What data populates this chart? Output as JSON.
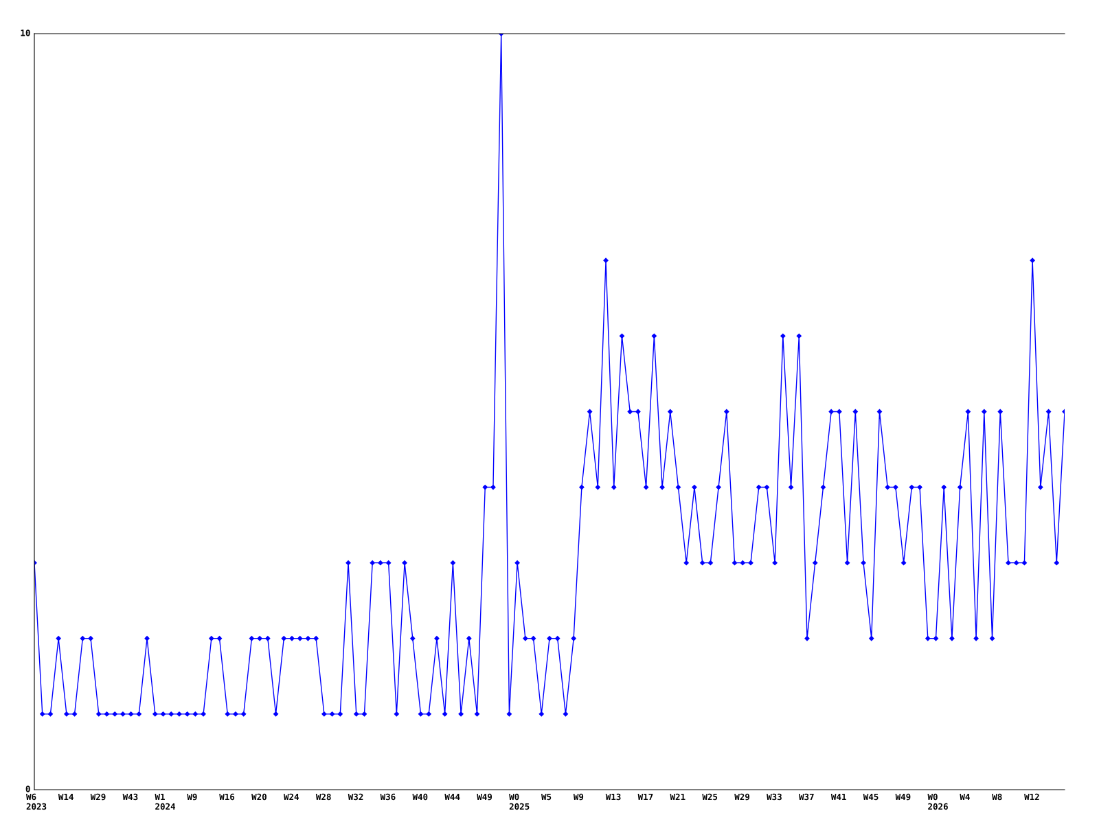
{
  "chart_data": {
    "type": "line",
    "categories": [
      "W6\n2023",
      null,
      null,
      null,
      "W14",
      null,
      null,
      null,
      "W29",
      null,
      null,
      null,
      "W43",
      null,
      null,
      null,
      "W1\n2024",
      null,
      null,
      null,
      "W9",
      null,
      null,
      null,
      "W16",
      null,
      null,
      null,
      "W20",
      null,
      null,
      null,
      "W24",
      null,
      null,
      null,
      "W28",
      null,
      null,
      null,
      "W32",
      null,
      null,
      null,
      "W36",
      null,
      null,
      null,
      "W40",
      null,
      null,
      null,
      "W44",
      null,
      null,
      null,
      "W49",
      null,
      null,
      null,
      "W0\n2025",
      null,
      null,
      null,
      "W5",
      null,
      null,
      null,
      "W9",
      null,
      null,
      null,
      "W13",
      null,
      null,
      null,
      "W17",
      null,
      null,
      null,
      "W21",
      null,
      null,
      null,
      "W25",
      null,
      null,
      null,
      "W29",
      null,
      null,
      null,
      "W33",
      null,
      null,
      null,
      "W37",
      null,
      null,
      null,
      "W41",
      null,
      null,
      null,
      "W45",
      null,
      null,
      null,
      "W49",
      null,
      null,
      null,
      "W0\n2026",
      null,
      null,
      null,
      "W4",
      null,
      null,
      null,
      "W8",
      null,
      null,
      null,
      "W12",
      null,
      null,
      null,
      null
    ],
    "series": [
      {
        "color": "#0000ff",
        "values": [
          3,
          1,
          1,
          2,
          1,
          1,
          2,
          2,
          1,
          1,
          1,
          1,
          1,
          1,
          2,
          1,
          1,
          1,
          1,
          1,
          1,
          1,
          2,
          2,
          1,
          1,
          1,
          2,
          2,
          2,
          1,
          2,
          2,
          2,
          2,
          2,
          1,
          1,
          1,
          3,
          1,
          1,
          3,
          3,
          3,
          1,
          3,
          2,
          1,
          1,
          2,
          1,
          3,
          1,
          2,
          1,
          4,
          4,
          10,
          1,
          3,
          2,
          2,
          1,
          2,
          2,
          1,
          2,
          4,
          5,
          4,
          7,
          4,
          6,
          5,
          5,
          4,
          6,
          4,
          5,
          4,
          3,
          4,
          3,
          3,
          4,
          5,
          3,
          3,
          3,
          4,
          4,
          3,
          6,
          4,
          6,
          2,
          3,
          4,
          5,
          5,
          3,
          5,
          3,
          2,
          5,
          4,
          4,
          3,
          4,
          4,
          2,
          2,
          4,
          2,
          4,
          5,
          2,
          5,
          2,
          5,
          3,
          3,
          3,
          7,
          4,
          5,
          3,
          5
        ]
      }
    ],
    "ylim": [
      0,
      10
    ],
    "yticks": [
      0,
      10
    ],
    "grid": false,
    "legend": false,
    "marker": "diamond",
    "line_style": "solid"
  }
}
